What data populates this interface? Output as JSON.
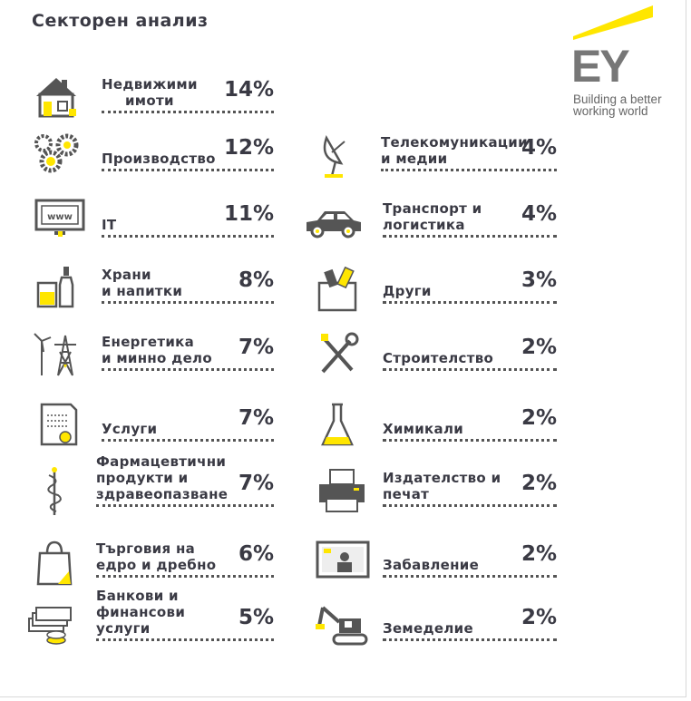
{
  "title": "Секторен анализ",
  "logo": {
    "mark": "EY",
    "tagline_1": "Building a better",
    "tagline_2": "working world"
  },
  "colors": {
    "accent": "#ffe600",
    "text": "#3a3a44",
    "icon": "#555555"
  },
  "chart_data": {
    "type": "table",
    "title": "Секторен анализ",
    "unit": "%",
    "categories": [
      {
        "label_lines": [
          "Недвижими",
          "имоти"
        ],
        "value": 14,
        "value_label": "14%",
        "icon": "house-icon"
      },
      {
        "label_lines": [
          "Производство"
        ],
        "value": 12,
        "value_label": "12%",
        "icon": "gears-icon"
      },
      {
        "label_lines": [
          "IT"
        ],
        "value": 11,
        "value_label": "11%",
        "icon": "monitor-icon"
      },
      {
        "label_lines": [
          "Храни",
          "и напитки"
        ],
        "value": 8,
        "value_label": "8%",
        "icon": "drinks-icon"
      },
      {
        "label_lines": [
          "Енергетика",
          "и минно дело"
        ],
        "value": 7,
        "value_label": "7%",
        "icon": "energy-icon"
      },
      {
        "label_lines": [
          "Услуги"
        ],
        "value": 7,
        "value_label": "7%",
        "icon": "certificate-icon"
      },
      {
        "label_lines": [
          "Фармацевтични",
          "продукти и",
          "здравеопазване"
        ],
        "value": 7,
        "value_label": "7%",
        "icon": "caduceus-icon"
      },
      {
        "label_lines": [
          "Търговия на",
          "едро и дребно"
        ],
        "value": 6,
        "value_label": "6%",
        "icon": "shopping-bag-icon"
      },
      {
        "label_lines": [
          "Банкови и",
          "финансови",
          "услуги"
        ],
        "value": 5,
        "value_label": "5%",
        "icon": "money-icon"
      },
      {
        "label_lines": [
          "Телекомуникации",
          "и медии"
        ],
        "value": 4,
        "value_label": "4%",
        "icon": "satellite-dish-icon"
      },
      {
        "label_lines": [
          "Транспорт и",
          "логистика"
        ],
        "value": 4,
        "value_label": "4%",
        "icon": "car-icon"
      },
      {
        "label_lines": [
          "Други"
        ],
        "value": 3,
        "value_label": "3%",
        "icon": "box-icon"
      },
      {
        "label_lines": [
          "Строителство"
        ],
        "value": 2,
        "value_label": "2%",
        "icon": "tools-icon"
      },
      {
        "label_lines": [
          "Химикали"
        ],
        "value": 2,
        "value_label": "2%",
        "icon": "flask-icon"
      },
      {
        "label_lines": [
          "Издателство и",
          "печат"
        ],
        "value": 2,
        "value_label": "2%",
        "icon": "printer-icon"
      },
      {
        "label_lines": [
          "Забавление"
        ],
        "value": 2,
        "value_label": "2%",
        "icon": "tv-icon"
      },
      {
        "label_lines": [
          "Земеделие"
        ],
        "value": 2,
        "value_label": "2%",
        "icon": "excavator-icon"
      }
    ]
  }
}
